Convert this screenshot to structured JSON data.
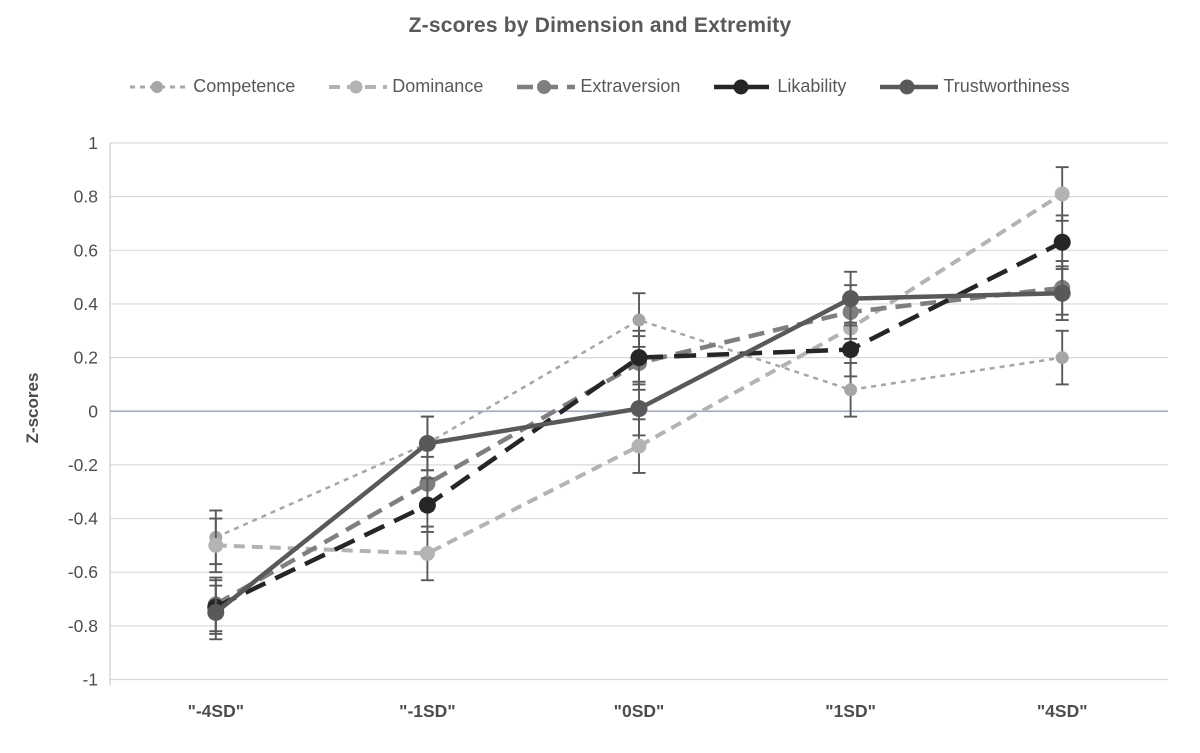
{
  "chart_data": {
    "type": "line",
    "title": "Z-scores by Dimension and Extremity",
    "ylabel": "Z-scores",
    "xlabel": "",
    "categories": [
      "\"-4SD\"",
      "\"-1SD\"",
      "\"0SD\"",
      "\"1SD\"",
      "\"4SD\""
    ],
    "series": [
      {
        "name": "Competence",
        "values": [
          -0.47,
          -0.12,
          0.34,
          0.08,
          0.2
        ],
        "error": 0.1,
        "color": "#a6a6a6",
        "dash": "5,5",
        "line_width": 2.5,
        "marker_radius": 6.5
      },
      {
        "name": "Dominance",
        "values": [
          -0.5,
          -0.53,
          -0.13,
          0.31,
          0.81
        ],
        "error": 0.1,
        "color": "#b3b3b3",
        "dash": "11,7",
        "line_width": 4,
        "marker_radius": 7.5
      },
      {
        "name": "Extraversion",
        "values": [
          -0.72,
          -0.27,
          0.18,
          0.37,
          0.46
        ],
        "error": 0.1,
        "color": "#7f7f7f",
        "dash": "16,9",
        "line_width": 4.5,
        "marker_radius": 8
      },
      {
        "name": "Likability",
        "values": [
          -0.73,
          -0.35,
          0.2,
          0.23,
          0.63
        ],
        "error": 0.1,
        "color": "#262626",
        "dash": "22,11",
        "line_width": 4.5,
        "marker_radius": 8.5
      },
      {
        "name": "Trustworthiness",
        "values": [
          -0.75,
          -0.12,
          0.01,
          0.42,
          0.44
        ],
        "error": 0.1,
        "color": "#595959",
        "dash": "",
        "line_width": 4.5,
        "marker_radius": 8.5
      }
    ],
    "ylim": [
      -1,
      1
    ],
    "ytick_step": 0.2,
    "ytick_labels": [
      "1",
      "0.8",
      "0.6",
      "0.4",
      "0.2",
      "0",
      "-0.2",
      "-0.4",
      "-0.6",
      "-0.8",
      "-1"
    ],
    "grid": true,
    "legend_position": "top",
    "axis_colors": {
      "grid": "#d9d9d9",
      "zero_line": "#a6aec2",
      "axis_line": "#c8ccd2",
      "error_bar": "#595959",
      "tick_text": "#4d4d4d"
    }
  }
}
